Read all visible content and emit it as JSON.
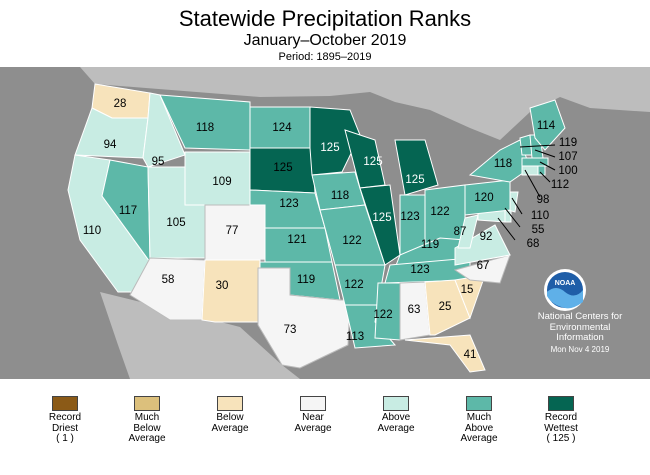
{
  "title": "Statewide Precipitation Ranks",
  "subtitle": "January–October 2019",
  "period": "Period: 1895–2019",
  "colors": {
    "record_driest": "#8b5a17",
    "much_below": "#dcc07c",
    "below": "#f7e3bb",
    "near": "#f5f5f5",
    "above": "#c8ece3",
    "much_above": "#5db8a8",
    "record_wettest": "#056552",
    "land_bg": "#bdbdbd",
    "ocean": "#8e8e8e"
  },
  "states": {
    "WA": "28",
    "OR": "94",
    "CA": "110",
    "ID": "95",
    "NV": "117",
    "MT": "118",
    "WY": "109",
    "UT": "105",
    "AZ": "58",
    "CO": "77",
    "NM": "30",
    "ND": "124",
    "SD": "125",
    "NE": "123",
    "KS": "121",
    "OK": "119",
    "TX": "73",
    "MN": "125",
    "IA": "118",
    "MO": "122",
    "AR": "122",
    "LA": "113",
    "WI": "125",
    "IL": "125",
    "MI": "125",
    "IN": "123",
    "OH": "122",
    "KY": "119",
    "TN": "123",
    "MS": "122",
    "AL": "63",
    "GA": "25",
    "FL": "41",
    "SC": "15",
    "NC": "67",
    "VA": "92",
    "WV": "87",
    "PA": "120",
    "NY": "118",
    "ME": "114",
    "VT": "119",
    "NH": "107",
    "MA": "100",
    "RI": "112",
    "CT": "98",
    "NJ": "110",
    "DE": "55",
    "MD": "68"
  },
  "branding": {
    "logo_text": "NOAA",
    "org_line1": "National Centers for",
    "org_line2": "Environmental",
    "org_line3": "Information",
    "date": "Mon Nov  4 2019"
  },
  "legend": [
    {
      "label1": "Record",
      "label2": "Driest",
      "label3": "( 1 )",
      "color": "#8b5a17"
    },
    {
      "label1": "Much",
      "label2": "Below",
      "label3": "Average",
      "color": "#dcc07c"
    },
    {
      "label1": "Below",
      "label2": "Average",
      "label3": "",
      "color": "#f7e3bb"
    },
    {
      "label1": "Near",
      "label2": "Average",
      "label3": "",
      "color": "#f5f5f5"
    },
    {
      "label1": "Above",
      "label2": "Average",
      "label3": "",
      "color": "#c8ece3"
    },
    {
      "label1": "Much",
      "label2": "Above",
      "label3": "Average",
      "color": "#5db8a8"
    },
    {
      "label1": "Record",
      "label2": "Wettest",
      "label3": "( 125 )",
      "color": "#056552"
    }
  ]
}
